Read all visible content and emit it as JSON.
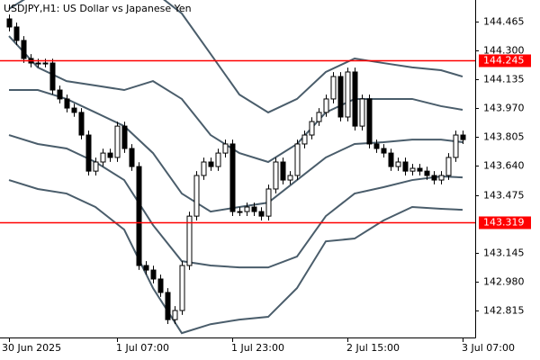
{
  "chart_data": {
    "type": "candlestick",
    "title": "USDJPY,H1:  US Dollar vs Japanese Yen",
    "categories": [
      "30 Jun 2025",
      null,
      null,
      null,
      null,
      null,
      null,
      null,
      null,
      null,
      null,
      null,
      null,
      null,
      null,
      "1 Jul 07:00",
      null,
      null,
      null,
      null,
      null,
      null,
      null,
      null,
      null,
      null,
      null,
      null,
      null,
      null,
      null,
      "1 Jul 23:00",
      null,
      null,
      null,
      null,
      null,
      null,
      null,
      null,
      null,
      null,
      null,
      null,
      null,
      null,
      null,
      "2 Jul 15:00",
      null,
      null,
      null,
      null,
      null,
      null,
      null,
      null,
      null,
      null,
      null,
      null,
      null,
      null,
      null,
      "3 Jul 07:00"
    ],
    "open": [
      144.48,
      144.434,
      144.357,
      144.254,
      144.228,
      144.228,
      144.228,
      144.074,
      144.023,
      143.971,
      143.946,
      143.817,
      143.611,
      143.663,
      143.714,
      143.689,
      143.868,
      143.74,
      143.637,
      143.072,
      143.046,
      142.995,
      142.918,
      142.763,
      142.815,
      143.072,
      143.354,
      143.586,
      143.663,
      143.637,
      143.714,
      143.766,
      143.38,
      143.38,
      143.406,
      143.38,
      143.354,
      143.509,
      143.663,
      143.56,
      143.586,
      143.766,
      143.817,
      143.894,
      143.946,
      144.023,
      144.151,
      143.92,
      144.177,
      143.868,
      144.023,
      143.766,
      143.74,
      143.714,
      143.637,
      143.663,
      143.611,
      143.627,
      143.611,
      143.586,
      143.56,
      143.586,
      143.689,
      143.817
    ],
    "high": [
      144.505,
      144.459,
      144.382,
      144.279,
      144.253,
      144.253,
      144.253,
      144.099,
      144.048,
      143.996,
      143.971,
      143.842,
      143.688,
      143.739,
      143.739,
      143.893,
      143.893,
      143.765,
      143.662,
      143.097,
      143.071,
      143.02,
      142.943,
      142.84,
      143.097,
      143.379,
      143.611,
      143.688,
      143.688,
      143.739,
      143.791,
      143.791,
      143.405,
      143.431,
      143.431,
      143.405,
      143.534,
      143.688,
      143.688,
      143.611,
      143.791,
      143.842,
      143.919,
      143.971,
      144.048,
      144.176,
      144.176,
      144.202,
      144.202,
      144.048,
      144.048,
      143.791,
      143.765,
      143.739,
      143.688,
      143.688,
      143.652,
      143.652,
      143.636,
      143.611,
      143.611,
      143.714,
      143.842,
      143.842
    ],
    "low": [
      144.409,
      144.332,
      144.229,
      144.203,
      144.203,
      144.203,
      144.049,
      143.998,
      143.946,
      143.921,
      143.792,
      143.586,
      143.586,
      143.638,
      143.664,
      143.664,
      143.715,
      143.612,
      143.047,
      143.021,
      142.97,
      142.893,
      142.738,
      142.738,
      142.79,
      143.047,
      143.329,
      143.561,
      143.612,
      143.612,
      143.689,
      143.355,
      143.355,
      143.355,
      143.355,
      143.329,
      143.329,
      143.484,
      143.535,
      143.535,
      143.561,
      143.741,
      143.792,
      143.869,
      143.921,
      143.998,
      143.895,
      143.895,
      143.843,
      143.843,
      143.741,
      143.715,
      143.689,
      143.612,
      143.612,
      143.586,
      143.586,
      143.586,
      143.561,
      143.535,
      143.535,
      143.561,
      143.664,
      143.766
    ],
    "close": [
      144.434,
      144.357,
      144.254,
      144.228,
      144.228,
      144.228,
      144.074,
      144.023,
      143.971,
      143.946,
      143.817,
      143.611,
      143.663,
      143.714,
      143.689,
      143.868,
      143.74,
      143.637,
      143.072,
      143.046,
      142.995,
      142.918,
      142.763,
      142.815,
      143.072,
      143.354,
      143.586,
      143.663,
      143.637,
      143.714,
      143.766,
      143.38,
      143.38,
      143.406,
      143.38,
      143.354,
      143.509,
      143.663,
      143.56,
      143.586,
      143.766,
      143.817,
      143.894,
      143.946,
      144.023,
      144.151,
      143.92,
      144.177,
      143.868,
      144.023,
      143.766,
      143.74,
      143.714,
      143.637,
      143.663,
      143.611,
      143.627,
      143.611,
      143.586,
      143.56,
      143.586,
      143.689,
      143.817,
      143.791
    ],
    "bull_color": "#ffffff",
    "bear_color": "#000000",
    "candle_outline": "#000000",
    "bands": [
      {
        "color": "#4a5d6b",
        "x": [
          0,
          4,
          8,
          12,
          16,
          20,
          24,
          28,
          32,
          36,
          40,
          44,
          48,
          52,
          56,
          60,
          63
        ],
        "values": [
          144.537,
          144.639,
          144.691,
          144.691,
          144.691,
          144.639,
          144.511,
          144.28,
          144.048,
          143.946,
          144.023,
          144.177,
          144.254,
          144.228,
          144.203,
          144.187,
          144.151
        ]
      },
      {
        "color": "#4a5d6b",
        "x": [
          0,
          4,
          8,
          12,
          16,
          20,
          24,
          28,
          32,
          36,
          40,
          44,
          48,
          52,
          56,
          60,
          63
        ],
        "values": [
          144.382,
          144.203,
          144.125,
          144.1,
          144.074,
          144.125,
          144.023,
          143.817,
          143.714,
          143.663,
          143.766,
          143.946,
          144.023,
          144.023,
          144.023,
          143.982,
          143.961
        ]
      },
      {
        "color": "#4a5d6b",
        "x": [
          0,
          4,
          8,
          12,
          16,
          20,
          24,
          28,
          32,
          36,
          40,
          44,
          48,
          52,
          56,
          60,
          63
        ],
        "values": [
          144.074,
          144.074,
          144.023,
          143.946,
          143.868,
          143.714,
          143.483,
          143.38,
          143.406,
          143.431,
          143.56,
          143.689,
          143.766,
          143.776,
          143.791,
          143.791,
          143.776
        ]
      },
      {
        "color": "#4a5d6b",
        "x": [
          0,
          4,
          8,
          12,
          16,
          20,
          24,
          28,
          32,
          36,
          40,
          44,
          48,
          52,
          56,
          60,
          63
        ],
        "values": [
          143.817,
          143.766,
          143.74,
          143.663,
          143.56,
          143.303,
          143.097,
          143.072,
          143.061,
          143.061,
          143.123,
          143.354,
          143.483,
          143.519,
          143.56,
          143.581,
          143.575
        ]
      },
      {
        "color": "#4a5d6b",
        "x": [
          0,
          4,
          8,
          12,
          16,
          20,
          24,
          28,
          32,
          36,
          40,
          44,
          48,
          52,
          56,
          60,
          63
        ],
        "values": [
          143.56,
          143.509,
          143.483,
          143.406,
          143.277,
          142.943,
          142.686,
          142.737,
          142.763,
          142.779,
          142.943,
          143.21,
          143.226,
          143.329,
          143.406,
          143.396,
          143.39
        ]
      }
    ],
    "levels": [
      {
        "value": 144.245,
        "color": "#ff0000"
      },
      {
        "value": 143.319,
        "color": "#ff0000"
      }
    ],
    "ylim": [
      142.661,
      144.588
    ],
    "yticks": [
      144.465,
      {
        "value": 144.3,
        "label": "144.300"
      },
      144.135,
      {
        "value": 143.97,
        "label": "143.970"
      },
      143.805,
      {
        "value": 143.64,
        "label": "143.640"
      },
      143.475,
      143.145,
      {
        "value": 142.98,
        "label": "142.980"
      },
      142.815
    ]
  }
}
